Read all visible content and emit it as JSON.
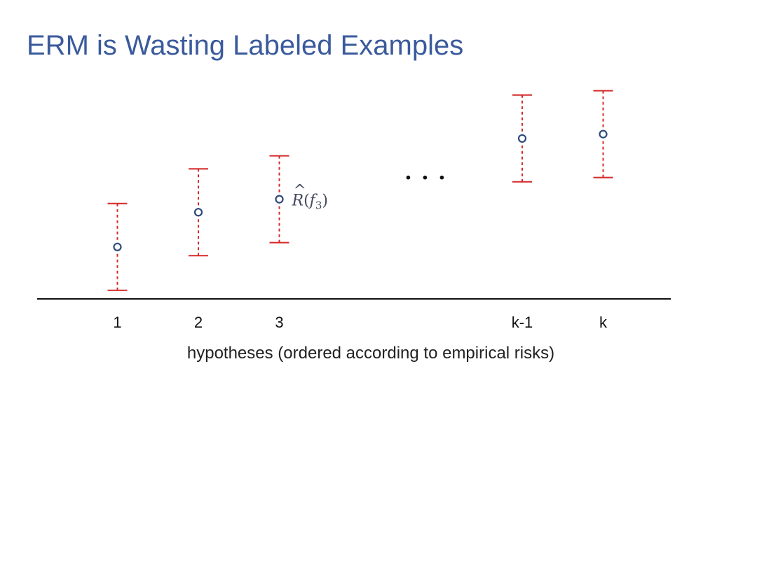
{
  "slide": {
    "title": "ERM is Wasting Labeled Examples"
  },
  "diagram": {
    "axis_caption": "hypotheses (ordered according to empirical risks)",
    "ellipsis": "...",
    "annotation": {
      "symbol": "R",
      "hat": "^",
      "func": "f",
      "sub": "3",
      "target_index": 2
    },
    "hypotheses": [
      {
        "label": "1",
        "slot": 1,
        "risk": 1.6,
        "lower": 0.6,
        "upper": 2.6
      },
      {
        "label": "2",
        "slot": 2,
        "risk": 2.4,
        "lower": 1.4,
        "upper": 3.4
      },
      {
        "label": "3",
        "slot": 3,
        "risk": 2.7,
        "lower": 1.7,
        "upper": 3.7
      },
      {
        "label": "k-1",
        "slot": 6,
        "risk": 4.1,
        "lower": 3.1,
        "upper": 5.1
      },
      {
        "label": "k",
        "slot": 7,
        "risk": 4.2,
        "lower": 3.2,
        "upper": 5.2
      }
    ],
    "ellipsis_slot": 4.8,
    "ellipsis_level": 3.2,
    "colors": {
      "interval": "#d42a2a",
      "point": "#2e4a7a",
      "title": "#3a5a9c",
      "axis": "#111111"
    }
  }
}
